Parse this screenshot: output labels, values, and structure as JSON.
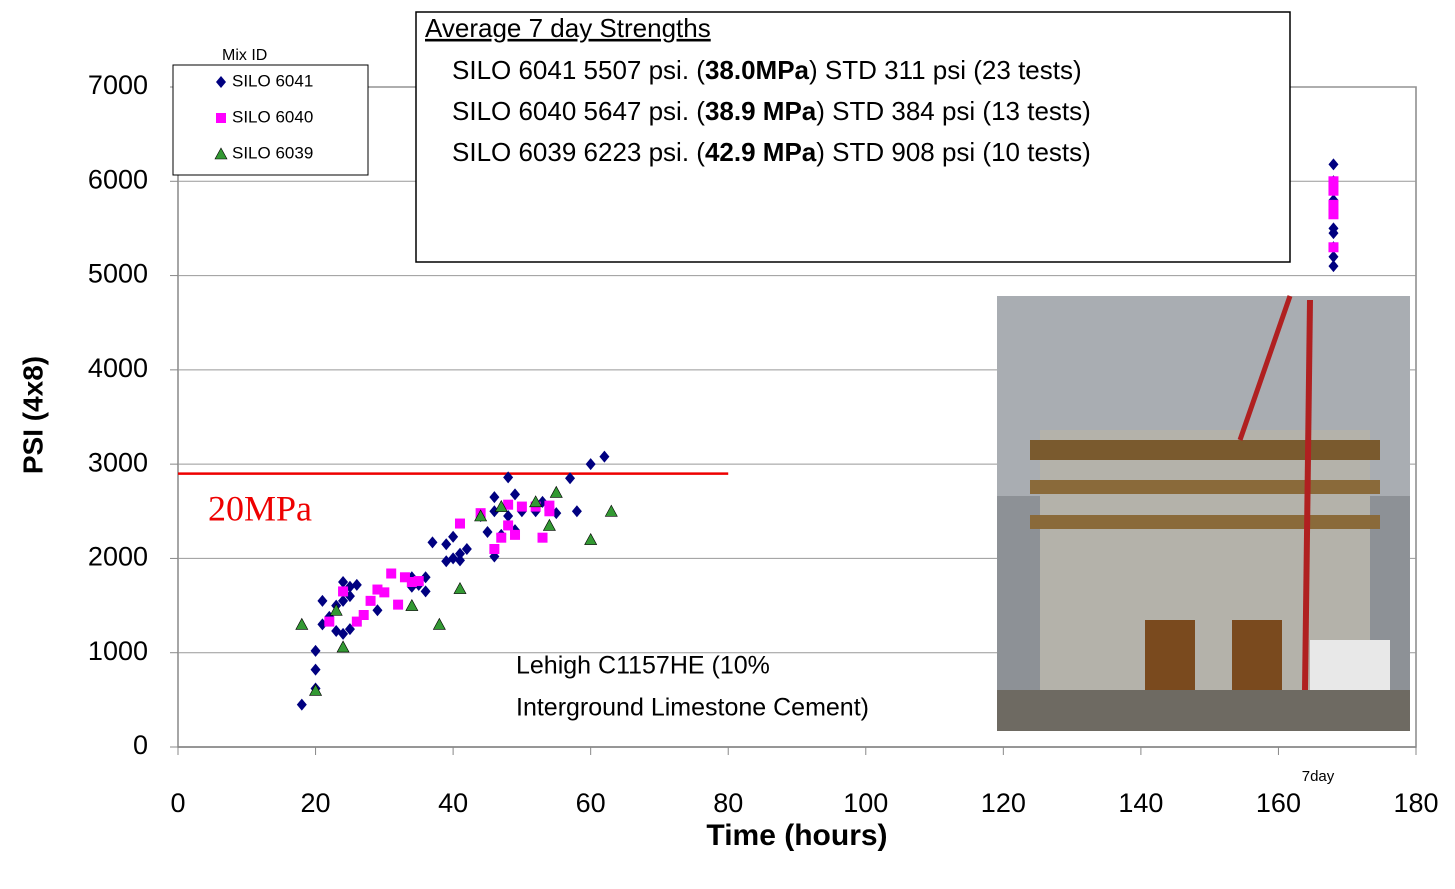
{
  "chart_data": {
    "type": "scatter",
    "xlabel": "Time (hours)",
    "ylabel": "PSI (4x8)",
    "xlim": [
      0,
      180
    ],
    "xticks": [
      0,
      20,
      40,
      60,
      80,
      100,
      120,
      140,
      160,
      180
    ],
    "ylim": [
      0,
      7000
    ],
    "yticks": [
      0,
      1000,
      2000,
      3000,
      4000,
      5000,
      6000,
      7000
    ],
    "grid": true,
    "legend_title": "Mix ID",
    "legend": "upper left",
    "series": [
      {
        "name": "SILO 6041",
        "color": "#000080",
        "marker": "diamond",
        "x": [
          18,
          20,
          20,
          20,
          21,
          21,
          22,
          23,
          23,
          24,
          24,
          24,
          25,
          25,
          25,
          26,
          29,
          34,
          34,
          35,
          36,
          36,
          37,
          39,
          39,
          40,
          40,
          41,
          41,
          42,
          44,
          45,
          46,
          46,
          46,
          47,
          48,
          48,
          49,
          49,
          50,
          52,
          53,
          55,
          57,
          58,
          60,
          62,
          168,
          168,
          168,
          168,
          168,
          168,
          168,
          168
        ],
        "y": [
          450,
          620,
          820,
          1020,
          1300,
          1550,
          1380,
          1230,
          1500,
          1200,
          1750,
          1550,
          1250,
          1600,
          1700,
          1720,
          1450,
          1700,
          1800,
          1720,
          1800,
          1650,
          2170,
          1970,
          2150,
          2000,
          2230,
          1980,
          2050,
          2100,
          2450,
          2280,
          2020,
          2500,
          2650,
          2250,
          2860,
          2450,
          2300,
          2680,
          2500,
          2500,
          2600,
          2480,
          2850,
          2500,
          3000,
          3080,
          5100,
          5200,
          5300,
          5450,
          5500,
          5800,
          6000,
          6180
        ]
      },
      {
        "name": "SILO 6040",
        "color": "#ff00ff",
        "marker": "square",
        "x": [
          22,
          24,
          26,
          27,
          28,
          29,
          30,
          31,
          32,
          33,
          34,
          35,
          41,
          44,
          46,
          47,
          48,
          48,
          49,
          50,
          52,
          53,
          54,
          54,
          168,
          168,
          168,
          168,
          168
        ],
        "y": [
          1330,
          1650,
          1330,
          1400,
          1550,
          1670,
          1640,
          1840,
          1510,
          1800,
          1750,
          1760,
          2370,
          2480,
          2100,
          2220,
          2350,
          2570,
          2250,
          2550,
          2550,
          2220,
          2560,
          2500,
          5650,
          5750,
          5900,
          6000,
          5300
        ]
      },
      {
        "name": "SILO 6039",
        "color": "#339933",
        "marker": "triangle",
        "x": [
          18,
          20,
          23,
          24,
          34,
          38,
          41,
          44,
          47,
          52,
          54,
          55,
          60,
          63
        ],
        "y": [
          1300,
          600,
          1450,
          1060,
          1500,
          1300,
          1680,
          2450,
          2550,
          2600,
          2350,
          2700,
          2200,
          2500
        ]
      }
    ],
    "reference_line": {
      "y": 2900,
      "x_end": 80,
      "label": "20MPa",
      "color": "#ee0000"
    },
    "x_annotation": {
      "x": 168,
      "label": "7day"
    },
    "note": [
      "Lehigh C1157HE  (10%",
      "Interground Limestone Cement)"
    ],
    "summary": {
      "title": "Average 7 day Strengths",
      "lines": [
        {
          "pre": "SILO 6041 5507 psi. (",
          "bold": "38.0MPa",
          "post": ") STD 311 psi (23 tests)"
        },
        {
          "pre": "SILO 6040 5647 psi. (",
          "bold": "38.9 MPa",
          "post": ") STD 384 psi (13 tests)"
        },
        {
          "pre": "SILO 6039 6223 psi. (",
          "bold": "42.9 MPa",
          "post": ") STD 908 psi (10 tests)"
        }
      ]
    }
  }
}
